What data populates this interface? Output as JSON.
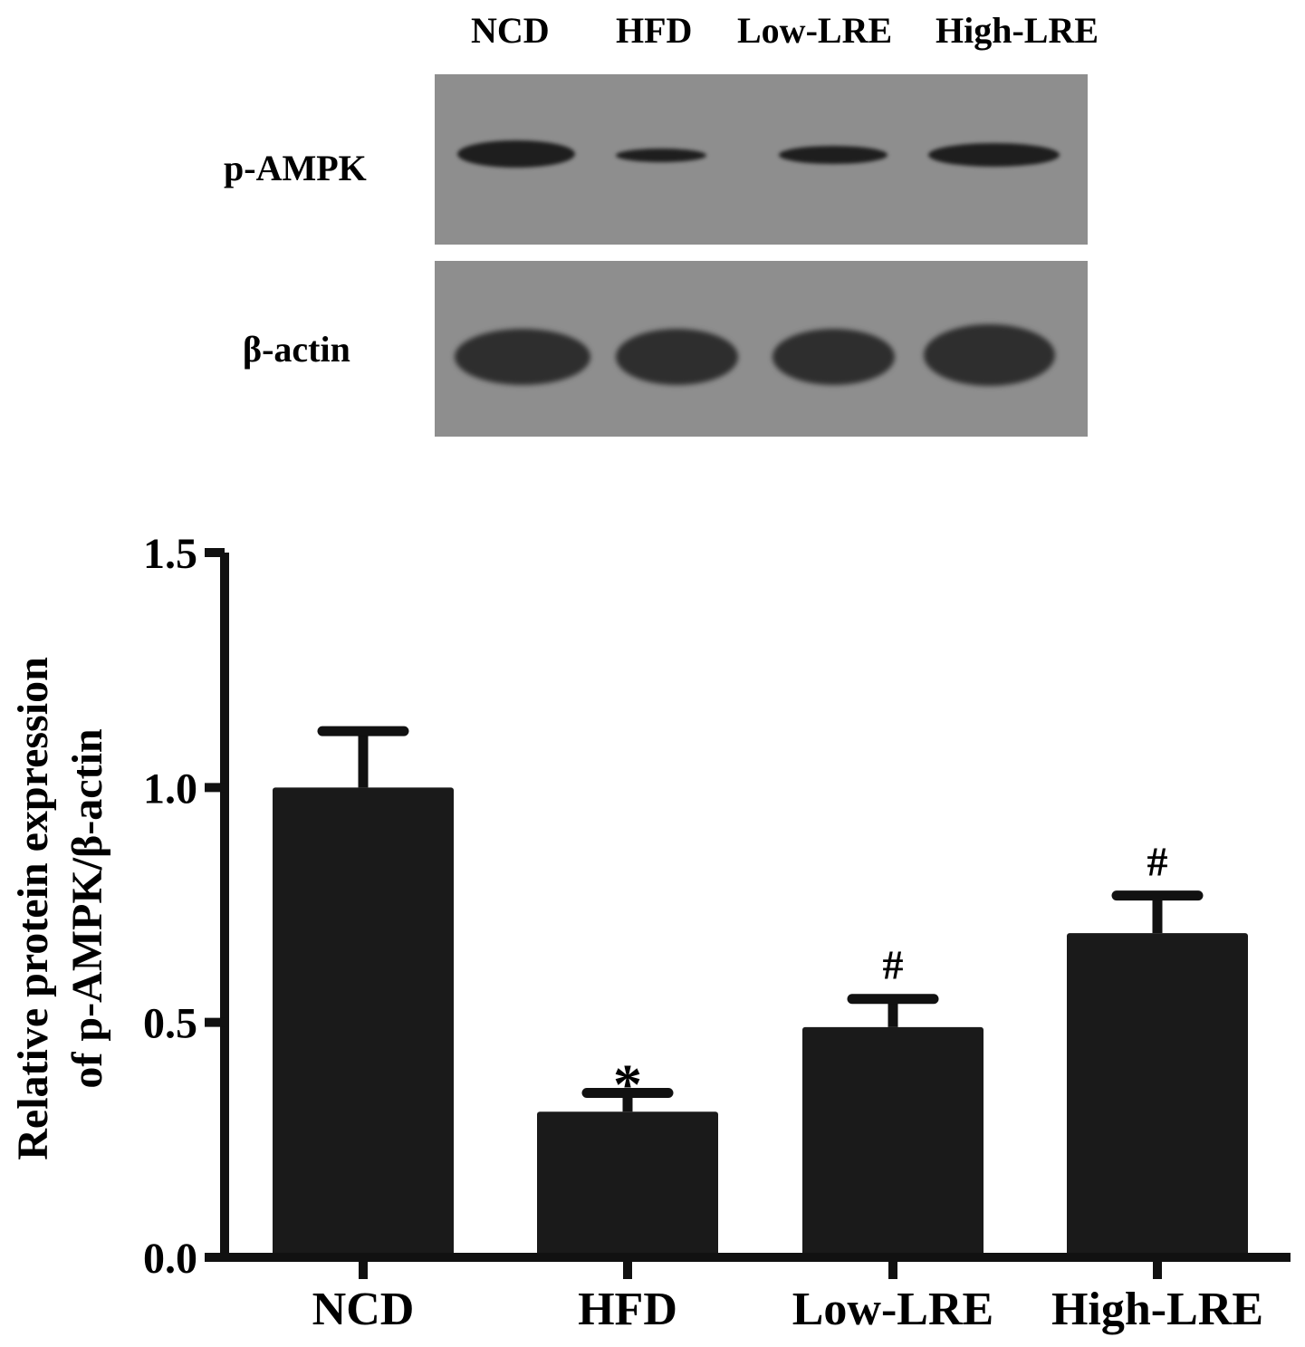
{
  "blot": {
    "lane_labels": [
      "NCD",
      "HFD",
      "Low-LRE",
      "High-LRE"
    ],
    "row_labels": [
      "p-AMPK",
      "β-actin"
    ]
  },
  "chart_data": {
    "type": "bar",
    "categories": [
      "NCD",
      "HFD",
      "Low-LRE",
      "High-LRE"
    ],
    "values": [
      1.0,
      0.31,
      0.49,
      0.69
    ],
    "error": [
      0.12,
      0.04,
      0.06,
      0.08
    ],
    "annotations": [
      "",
      "*",
      "#",
      "#"
    ],
    "ylabel_line1": "Relative protein expression",
    "ylabel_line2": "of p-AMPK/β-actin",
    "ylim": [
      0,
      1.5
    ],
    "yticks": [
      "0.0",
      "0.5",
      "1.0",
      "1.5"
    ],
    "bar_color": "#1a1a1a",
    "grid": false,
    "legend": "none"
  }
}
